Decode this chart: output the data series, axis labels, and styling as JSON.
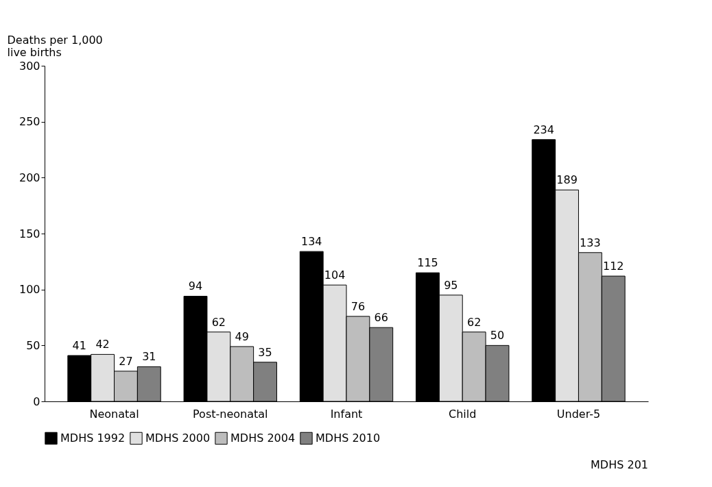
{
  "chart_data": {
    "type": "bar",
    "ylabel": "Deaths per 1,000\nlive births",
    "categories": [
      "Neonatal",
      "Post-neonatal",
      "Infant",
      "Child",
      "Under-5"
    ],
    "series": [
      {
        "name": "MDHS 1992",
        "color": "#000000",
        "values": [
          41,
          94,
          134,
          115,
          234
        ]
      },
      {
        "name": "MDHS 2000",
        "color": "#e0e0e0",
        "values": [
          42,
          62,
          104,
          95,
          189
        ]
      },
      {
        "name": "MDHS 2004",
        "color": "#bdbdbd",
        "values": [
          27,
          49,
          76,
          62,
          133
        ]
      },
      {
        "name": "MDHS 2010",
        "color": "#808080",
        "values": [
          31,
          35,
          66,
          50,
          112
        ]
      }
    ],
    "ylim": [
      0,
      300
    ],
    "yticks": [
      0,
      50,
      100,
      150,
      200,
      250,
      300
    ],
    "grid": false,
    "legend": "bottom",
    "data_labels": true,
    "annotations": [
      "MDHS 201"
    ]
  }
}
